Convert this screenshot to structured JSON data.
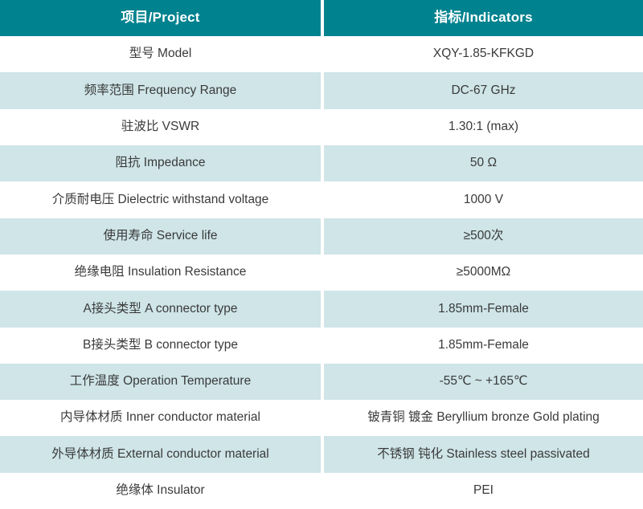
{
  "colors": {
    "header_bg": "#00828F",
    "alt_row_bg": "#CFE5E8",
    "header_text": "#FFFFFF",
    "body_text": "#3A3A3A"
  },
  "table": {
    "headers": [
      "项目/Project",
      "指标/Indicators"
    ],
    "rows": [
      {
        "project": "型号 Model",
        "indicator": "XQY-1.85-KFKGD"
      },
      {
        "project": "频率范围 Frequency Range",
        "indicator": "DC-67 GHz"
      },
      {
        "project": "驻波比 VSWR",
        "indicator": "1.30:1 (max)"
      },
      {
        "project": "阻抗 Impedance",
        "indicator": "50 Ω"
      },
      {
        "project": "介质耐电压 Dielectric withstand voltage",
        "indicator": "1000 V"
      },
      {
        "project": "使用寿命 Service life",
        "indicator": "≥500次"
      },
      {
        "project": "绝缘电阻 Insulation Resistance",
        "indicator": "≥5000MΩ"
      },
      {
        "project": "A接头类型 A connector type",
        "indicator": "1.85mm-Female"
      },
      {
        "project": "B接头类型 B connector type",
        "indicator": "1.85mm-Female"
      },
      {
        "project": "工作温度 Operation Temperature",
        "indicator": "-55℃ ~ +165℃"
      },
      {
        "project": "内导体材质 Inner conductor material",
        "indicator": "铍青铜 镀金 Beryllium bronze Gold plating"
      },
      {
        "project": "外导体材质 External conductor material",
        "indicator": "不锈钢 钝化 Stainless steel passivated"
      },
      {
        "project": "绝缘体 Insulator",
        "indicator": "PEI"
      }
    ]
  }
}
